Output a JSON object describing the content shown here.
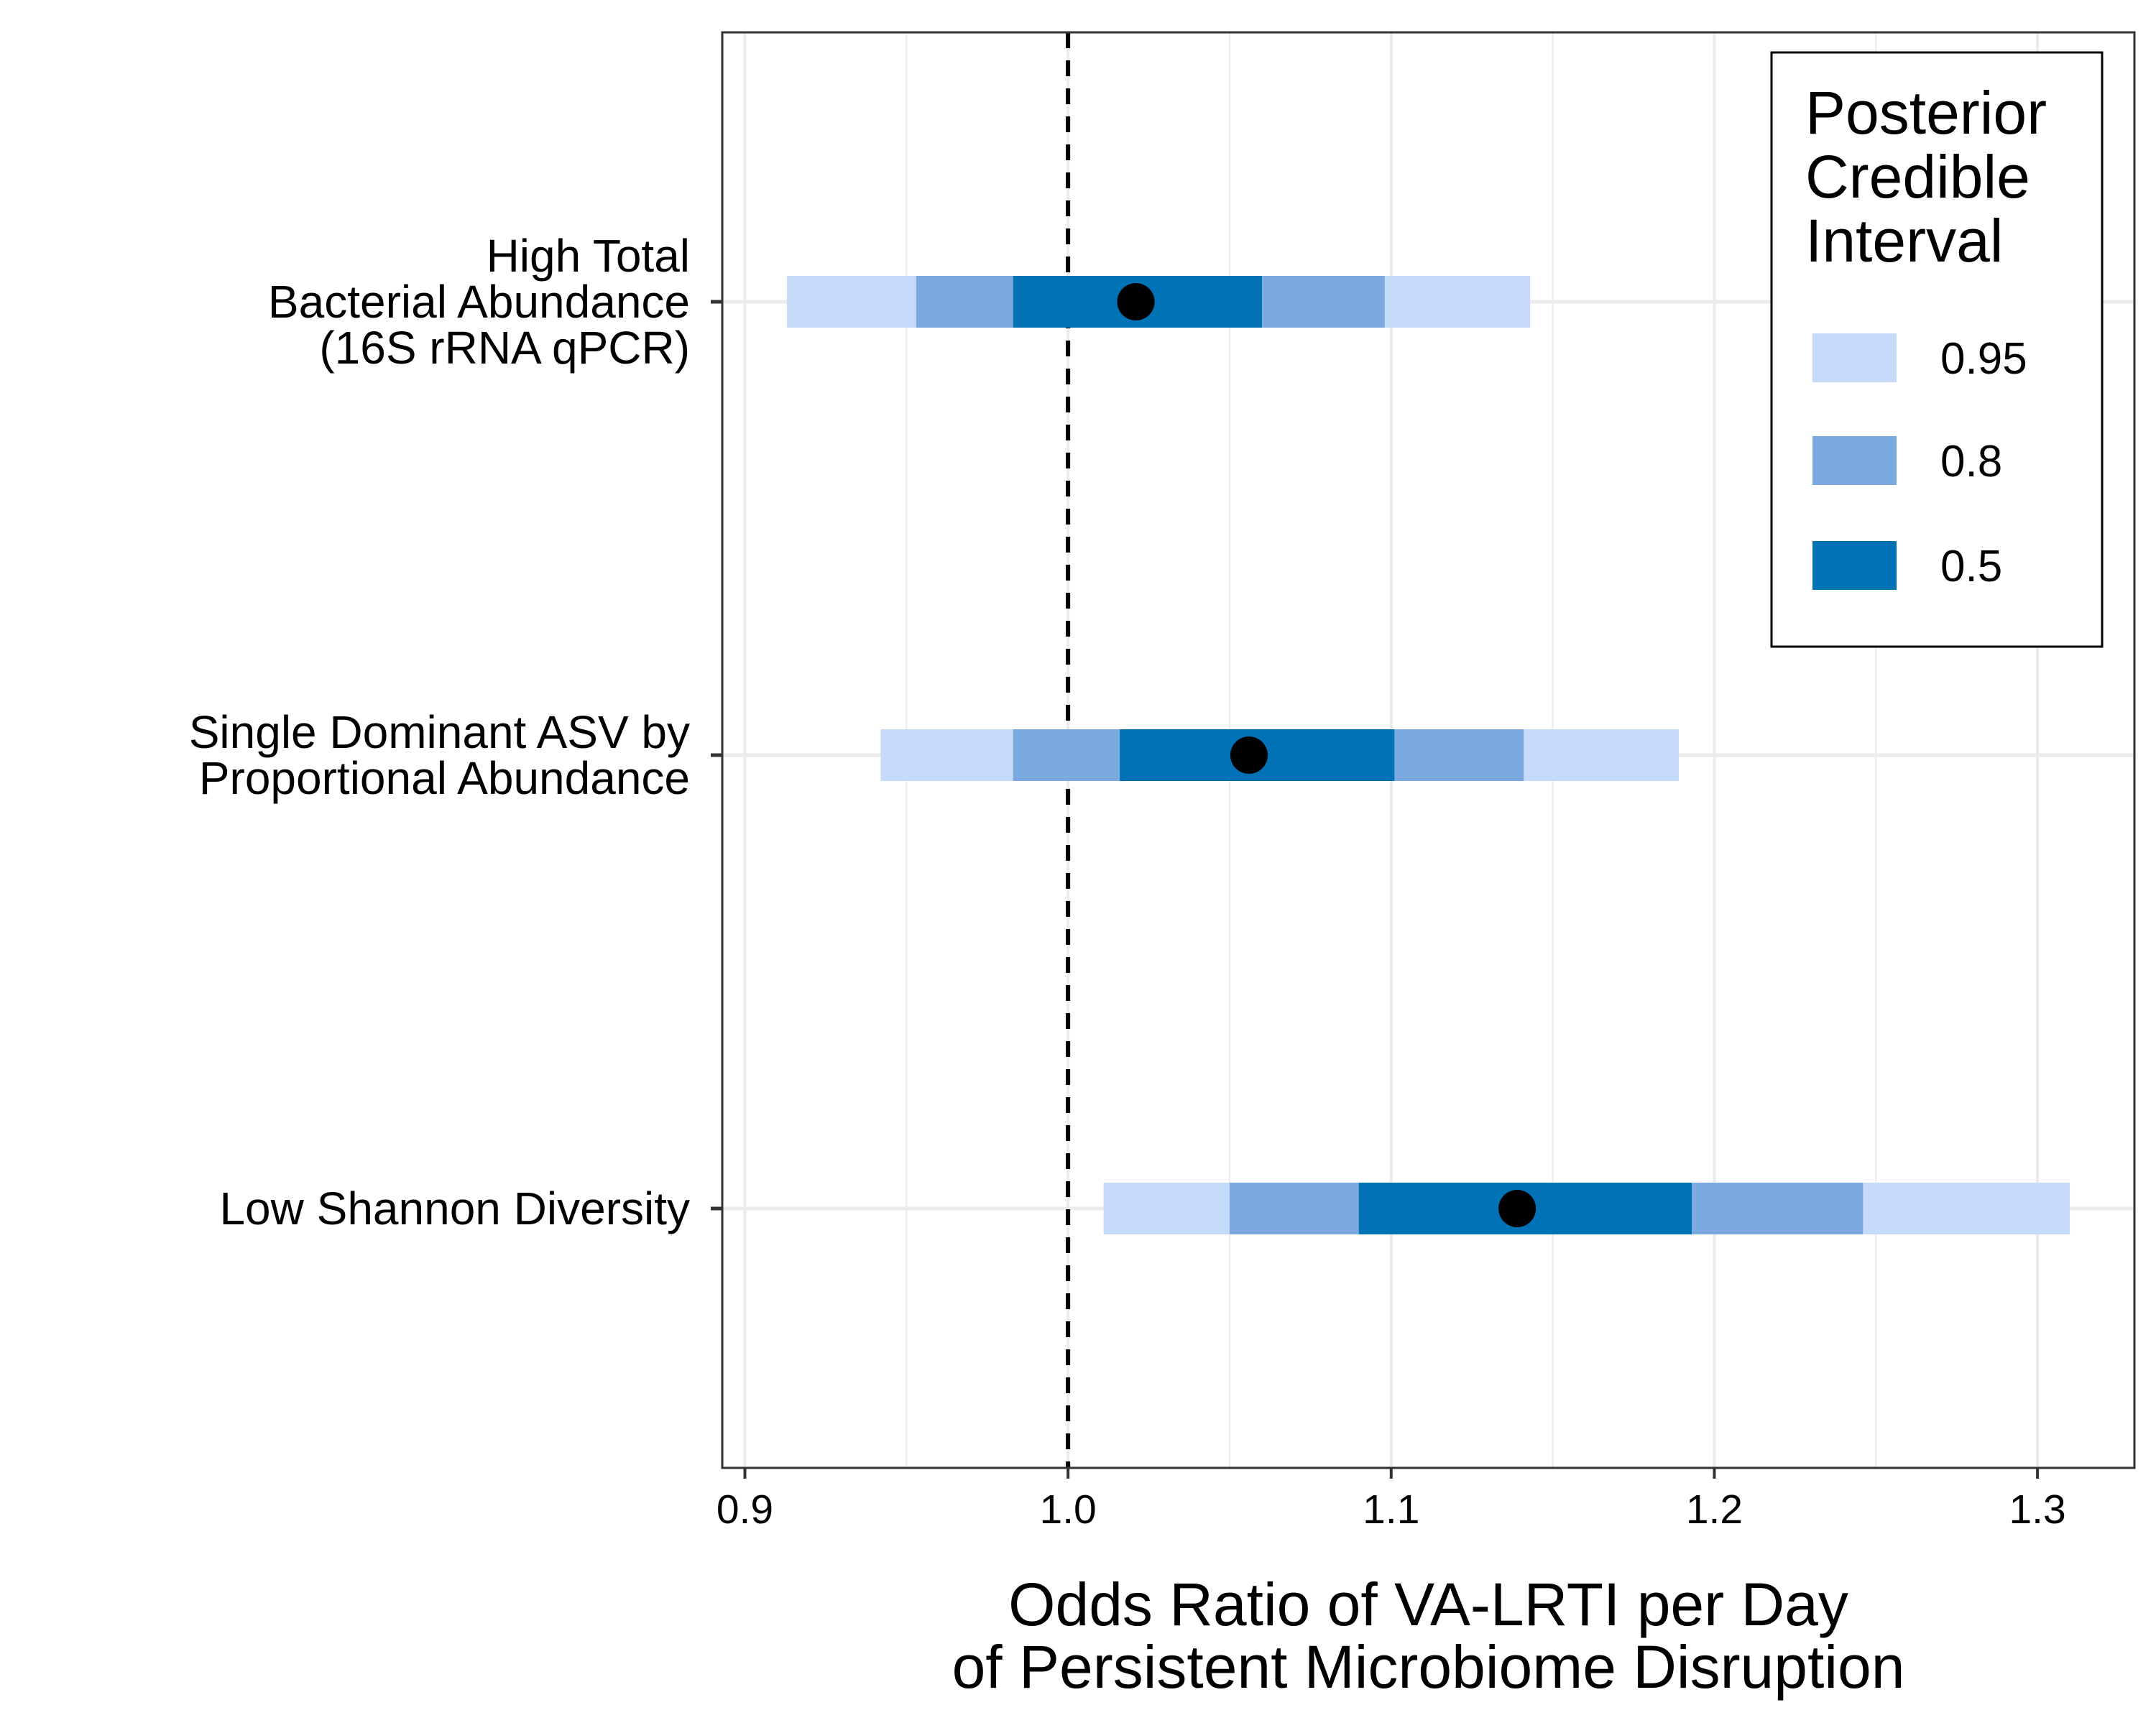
{
  "chart_data": {
    "type": "interval",
    "orientation": "horizontal",
    "xlabel": [
      "Odds Ratio of VA-LRTI per Day",
      "of Persistent Microbiome Disruption"
    ],
    "xlim": [
      0.893,
      1.33
    ],
    "x_ticks": [
      0.9,
      1.0,
      1.1,
      1.2,
      1.3
    ],
    "x_tick_labels": [
      "0.9",
      "1.0",
      "1.1",
      "1.2",
      "1.3"
    ],
    "reference_line": {
      "x": 1.0,
      "style": "dashed"
    },
    "grid": true,
    "legend": {
      "title": [
        "Posterior",
        "Credible",
        "Interval"
      ],
      "placement": "top-right",
      "items": [
        {
          "label": "0.95",
          "level": 0.95,
          "color": "#C6DBFA"
        },
        {
          "label": "0.8",
          "level": 0.8,
          "color": "#7BAAE0"
        },
        {
          "label": "0.5",
          "level": 0.5,
          "color": "#0072B5"
        }
      ]
    },
    "point_color": "#000000",
    "categories": [
      {
        "label": [
          "High Total",
          "Bacterial Abundance",
          "(16S rRNA qPCR)"
        ],
        "median": 1.021,
        "ci95": [
          0.913,
          1.143
        ],
        "ci80": [
          0.953,
          1.098
        ],
        "ci50": [
          0.983,
          1.06
        ]
      },
      {
        "label": [
          "Single Dominant ASV by",
          "Proportional Abundance"
        ],
        "median": 1.056,
        "ci95": [
          0.942,
          1.189
        ],
        "ci80": [
          0.983,
          1.141
        ],
        "ci50": [
          1.016,
          1.101
        ]
      },
      {
        "label": [
          "Low Shannon Diversity"
        ],
        "median": 1.139,
        "ci95": [
          1.011,
          1.31
        ],
        "ci80": [
          1.05,
          1.246
        ],
        "ci50": [
          1.09,
          1.193
        ]
      }
    ]
  }
}
